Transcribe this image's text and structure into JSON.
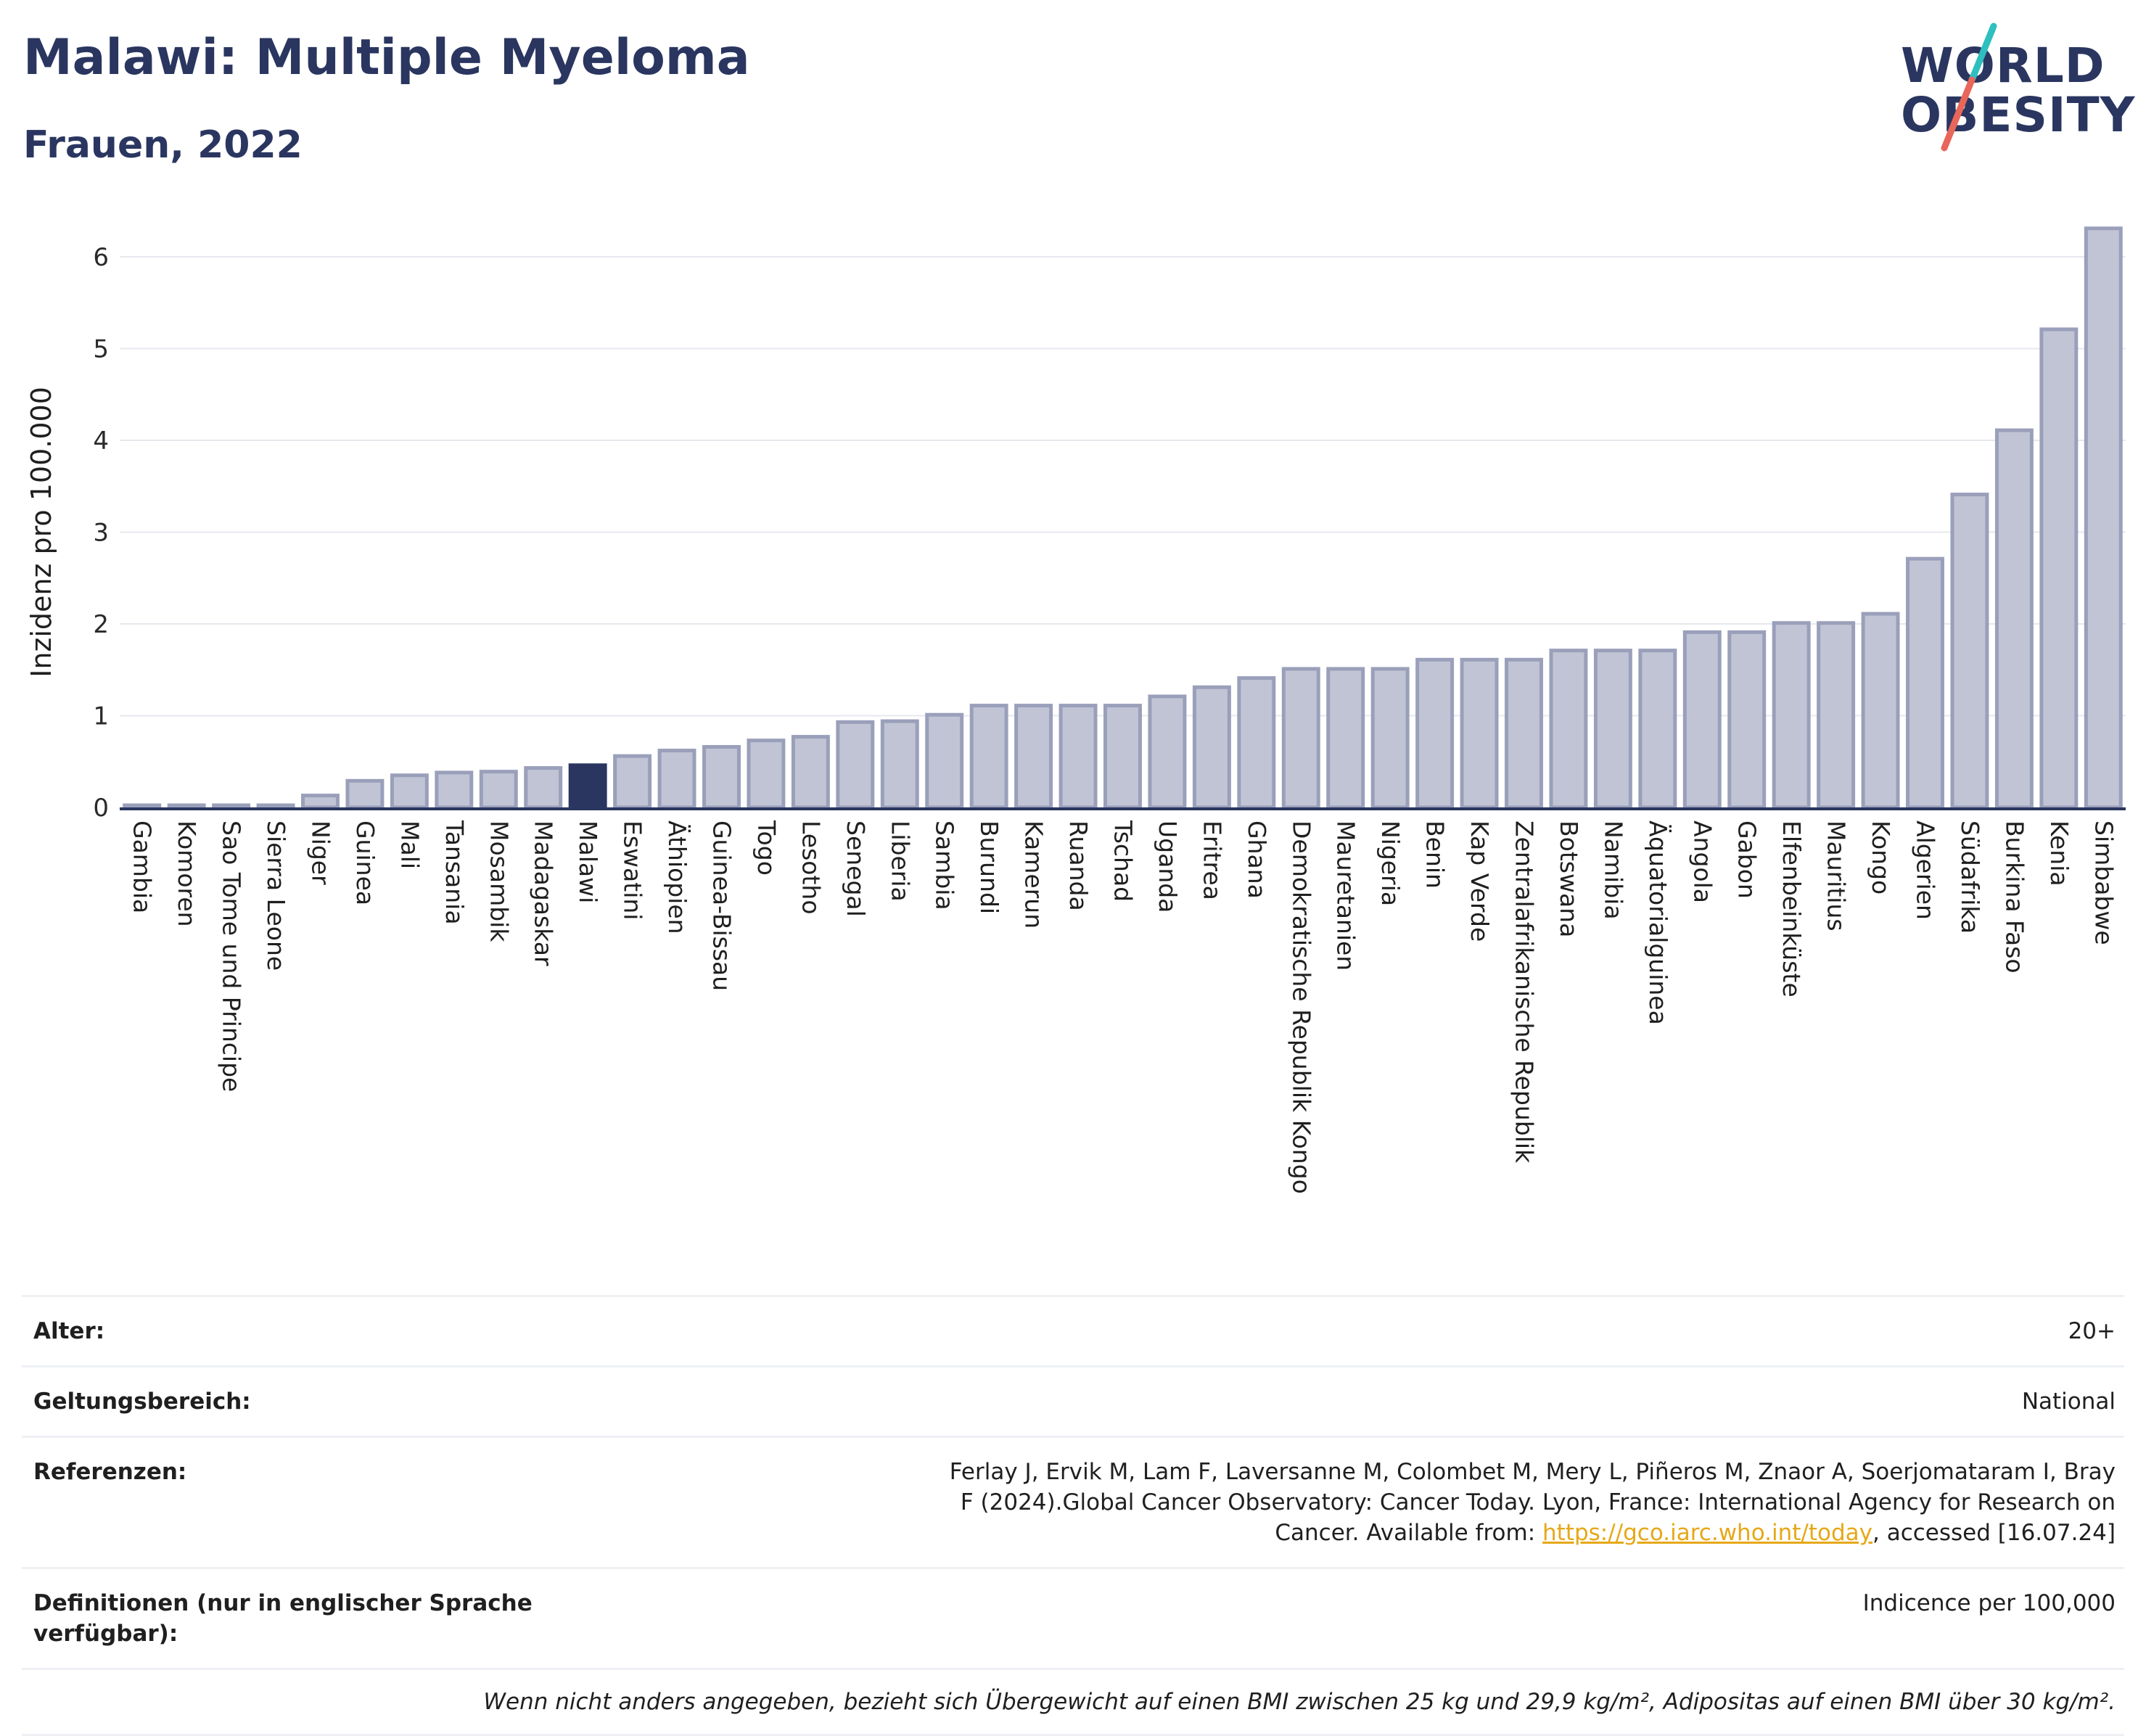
{
  "header": {
    "title": "Malawi: Multiple Myeloma",
    "subtitle": "Frauen, 2022"
  },
  "logo": {
    "line1": "WORLD",
    "line2": "OBESITY",
    "accent_colors": [
      "#2ebfbf",
      "#e8665a"
    ]
  },
  "colors": {
    "bar": "#c0c4d4",
    "bar_stroke": "#9a9fba",
    "highlight": "#2a3660",
    "grid": "#e6e8ee",
    "axis": "#2a3660"
  },
  "chart_data": {
    "type": "bar",
    "title": "Malawi: Multiple Myeloma",
    "subtitle": "Frauen, 2022",
    "xlabel": "",
    "ylabel": "Inzidenz pro 100.000",
    "ylim": [
      0,
      6.5
    ],
    "yticks": [
      0,
      1,
      2,
      3,
      4,
      5,
      6
    ],
    "grid": true,
    "highlight": "Malawi",
    "categories": [
      "Gambia",
      "Komoren",
      "Sao Tome und Principe",
      "Sierra Leone",
      "Niger",
      "Guinea",
      "Mali",
      "Tansania",
      "Mosambik",
      "Madagaskar",
      "Malawi",
      "Eswatini",
      "Äthiopien",
      "Guinea-Bissau",
      "Togo",
      "Lesotho",
      "Senegal",
      "Liberia",
      "Sambia",
      "Burundi",
      "Kamerun",
      "Ruanda",
      "Tschad",
      "Uganda",
      "Eritrea",
      "Ghana",
      "Demokratische Republik Kongo",
      "Mauretanien",
      "Nigeria",
      "Benin",
      "Kap Verde",
      "Zentralafrikanische Republik",
      "Botswana",
      "Namibia",
      "Äquatorialguinea",
      "Angola",
      "Gabon",
      "Elfenbeinküste",
      "Mauritius",
      "Kongo",
      "Algerien",
      "Südafrika",
      "Burkina Faso",
      "Kenia",
      "Simbabwe"
    ],
    "values": [
      0.02,
      0.02,
      0.02,
      0.02,
      0.13,
      0.29,
      0.35,
      0.38,
      0.39,
      0.43,
      0.46,
      0.56,
      0.62,
      0.66,
      0.73,
      0.77,
      0.93,
      0.94,
      1.01,
      1.11,
      1.11,
      1.11,
      1.11,
      1.21,
      1.31,
      1.41,
      1.51,
      1.51,
      1.51,
      1.61,
      1.61,
      1.61,
      1.71,
      1.71,
      1.71,
      1.91,
      1.91,
      2.01,
      2.01,
      2.11,
      2.71,
      3.41,
      4.11,
      5.21,
      6.31
    ]
  },
  "meta": {
    "age_label": "Alter:",
    "age_value": "20+",
    "scope_label": "Geltungsbereich:",
    "scope_value": "National",
    "ref_label": "Referenzen:",
    "ref_text": "Ferlay J, Ervik M, Lam F, Laversanne M, Colombet M, Mery L, Piñeros M, Znaor A, Soerjomataram I, Bray F (2024).Global Cancer Observatory: Cancer Today. Lyon, France: International Agency for Research on Cancer. Available from:",
    "ref_link": "https://gco.iarc.who.int/today",
    "ref_suffix": ", accessed [16.07.24]",
    "def_label": "Definitionen (nur in englischer Sprache verfügbar):",
    "def_value": "Indicence per 100,000",
    "footnote": "Wenn nicht anders angegeben, bezieht sich Übergewicht auf einen BMI zwischen 25 kg und 29,9 kg/m², Adipositas auf einen BMI über 30 kg/m²."
  }
}
